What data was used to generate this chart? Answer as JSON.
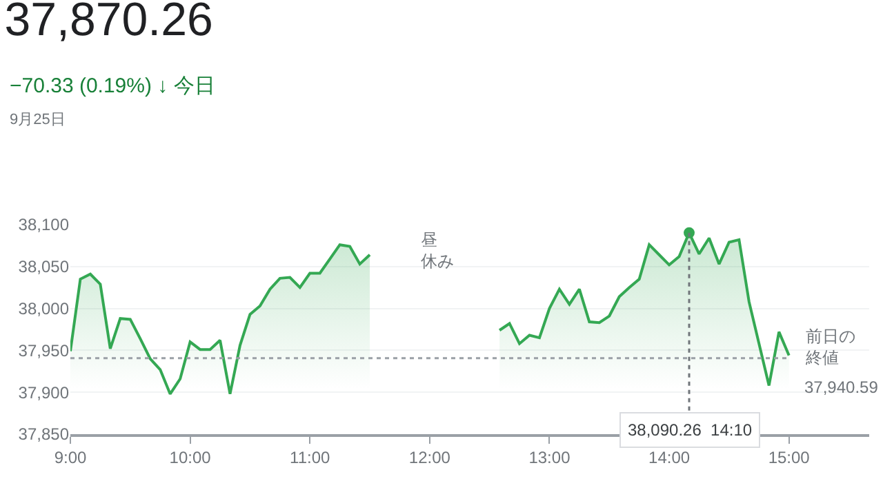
{
  "chart_data": {
    "type": "area",
    "title": "37,870.26",
    "subtitle": "−70.33 (0.19%) ↓ 今日",
    "annotations": [
      "9月25日",
      "昼休み",
      "前日の終値",
      {
        "text": "38,090.26  14:10",
        "x": 14.1667,
        "y": 38090.26
      }
    ],
    "series": [
      {
        "color": "#34a853",
        "x": [
          9.0,
          9.0833,
          9.1667,
          9.25,
          9.3333,
          9.4167,
          9.5,
          9.5833,
          9.6667,
          9.75,
          9.8333,
          9.9167,
          10.0,
          10.0833,
          10.1667,
          10.25,
          10.3333,
          10.4167,
          10.5,
          10.5833,
          10.6667,
          10.75,
          10.8333,
          10.9167,
          11.0,
          11.0833,
          11.1667,
          11.25,
          11.3333,
          11.4167,
          11.5
        ],
        "values": [
          37949,
          38035,
          38041,
          38029,
          37952,
          37988,
          37987,
          37964,
          37940,
          37927,
          37898,
          37916,
          37960,
          37951,
          37951,
          37962,
          37898,
          37956,
          37993,
          38003,
          38023,
          38036,
          38037,
          38025,
          38042,
          38042,
          38059,
          38076,
          38074,
          38053,
          38064
        ]
      },
      {
        "color": "#34a853",
        "x": [
          12.5833,
          12.6667,
          12.75,
          12.8333,
          12.9167,
          13.0,
          13.0833,
          13.1667,
          13.25,
          13.3333,
          13.4167,
          13.5,
          13.5833,
          13.6667,
          13.75,
          13.8333,
          13.9167,
          14.0,
          14.0833,
          14.1667,
          14.25,
          14.3333,
          14.4167,
          14.5,
          14.5833,
          14.6667,
          14.8333,
          14.9167,
          15.0
        ],
        "values": [
          37974,
          37982,
          37958,
          37968,
          37965,
          38000,
          38023,
          38005,
          38023,
          37984,
          37983,
          37991,
          38014,
          38025,
          38035,
          38076,
          38064,
          38052,
          38062,
          38090.26,
          38065,
          38084,
          38053,
          38079,
          38082,
          38008,
          37908,
          37972,
          37944
        ]
      }
    ],
    "xlim": [
      9,
      15.67
    ],
    "ylim": [
      37850,
      38100
    ],
    "xticks": [
      {
        "value": 9,
        "label": "9:00"
      },
      {
        "value": 10,
        "label": "10:00"
      },
      {
        "value": 11,
        "label": "11:00"
      },
      {
        "value": 12,
        "label": "12:00"
      },
      {
        "value": 13,
        "label": "13:00"
      },
      {
        "value": 14,
        "label": "14:00"
      },
      {
        "value": 15,
        "label": "15:00"
      }
    ],
    "yticks": [
      {
        "value": 37850,
        "label": "37,850"
      },
      {
        "value": 37900,
        "label": "37,900"
      },
      {
        "value": 37950,
        "label": "37,950"
      },
      {
        "value": 38000,
        "label": "38,000"
      },
      {
        "value": 38050,
        "label": "38,050"
      },
      {
        "value": 38100,
        "label": "38,100"
      }
    ],
    "ref_lines": [
      {
        "axis": "y",
        "value": 37940.59,
        "label": "37,940.59",
        "color": "#9aa0a6",
        "line_style": "dotted"
      }
    ],
    "grid": "y",
    "legend": false,
    "marker": "none",
    "line_style": "solid"
  }
}
